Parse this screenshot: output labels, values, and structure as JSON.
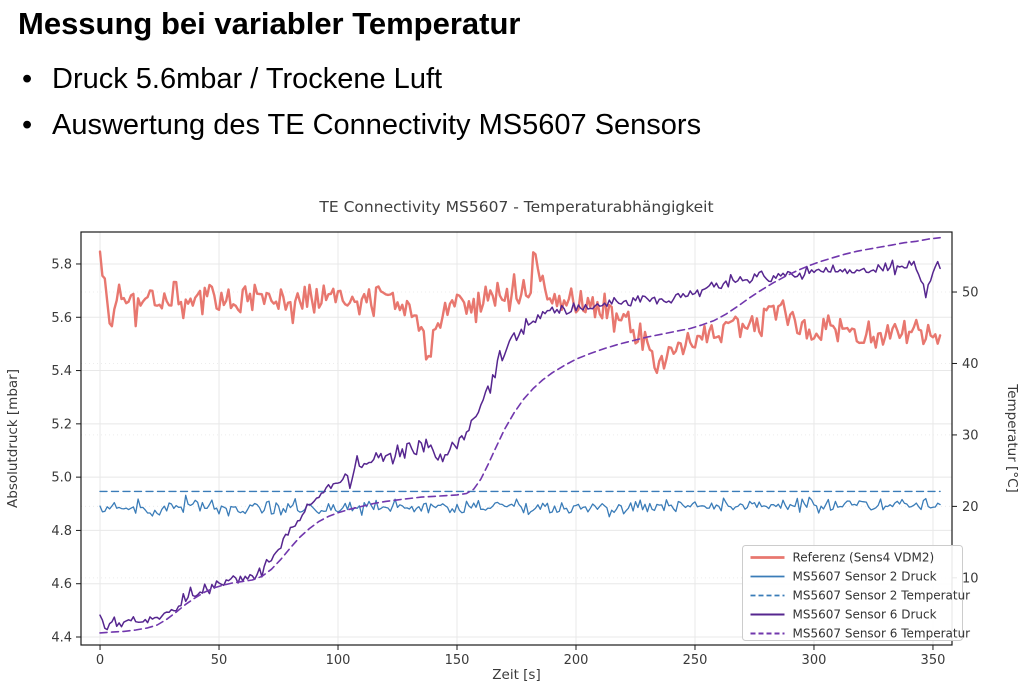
{
  "slide": {
    "title": "Messung bei variabler Temperatur",
    "bullet_glyph": "•",
    "bullets": [
      "Druck 5.6mbar / Trockene Luft",
      "Auswertung des TE Connectivity MS5607 Sensors"
    ]
  },
  "chart_data": {
    "type": "line",
    "title": "TE Connectivity MS5607 - Temperaturabhängigkeit",
    "xlabel": "Zeit [s]",
    "ylabel_left": "Absolutdruck [mbar]",
    "ylabel_right": "Temperatur [°C]",
    "xlim": [
      -8,
      358
    ],
    "ylim_left": [
      4.37,
      5.92
    ],
    "ylim_right": [
      0.6,
      58.4
    ],
    "xticks": [
      0,
      50,
      100,
      150,
      200,
      250,
      300,
      350
    ],
    "yticks_left": [
      4.4,
      4.6,
      4.8,
      5.0,
      5.2,
      5.4,
      5.6,
      5.8
    ],
    "yticks_right": [
      10,
      20,
      30,
      40,
      50
    ],
    "grid": true,
    "legend_position": "lower right",
    "colors": {
      "referenz": "#e8776f",
      "sensor2": "#3a7cb8",
      "sensor6_solid": "#56268f",
      "sensor6_dashed": "#7137ad"
    },
    "series": [
      {
        "name": "Referenz (Sens4 VDM2)",
        "axis": "left",
        "color": "#e8776f",
        "dash": false,
        "width": 2.4,
        "noise_std": 0.033,
        "points": [
          [
            0,
            5.8
          ],
          [
            2,
            5.7
          ],
          [
            4,
            5.56
          ],
          [
            8,
            5.66
          ],
          [
            14,
            5.65
          ],
          [
            20,
            5.68
          ],
          [
            26,
            5.65
          ],
          [
            32,
            5.67
          ],
          [
            38,
            5.66
          ],
          [
            44,
            5.68
          ],
          [
            50,
            5.68
          ],
          [
            56,
            5.65
          ],
          [
            62,
            5.67
          ],
          [
            68,
            5.7
          ],
          [
            74,
            5.66
          ],
          [
            80,
            5.65
          ],
          [
            86,
            5.68
          ],
          [
            92,
            5.66
          ],
          [
            98,
            5.7
          ],
          [
            104,
            5.67
          ],
          [
            110,
            5.64
          ],
          [
            116,
            5.68
          ],
          [
            122,
            5.67
          ],
          [
            128,
            5.64
          ],
          [
            132,
            5.6
          ],
          [
            136,
            5.51
          ],
          [
            139,
            5.46
          ],
          [
            142,
            5.57
          ],
          [
            146,
            5.63
          ],
          [
            152,
            5.66
          ],
          [
            158,
            5.66
          ],
          [
            164,
            5.67
          ],
          [
            170,
            5.66
          ],
          [
            176,
            5.69
          ],
          [
            181,
            5.75
          ],
          [
            183,
            5.83
          ],
          [
            185,
            5.74
          ],
          [
            188,
            5.68
          ],
          [
            192,
            5.66
          ],
          [
            197,
            5.65
          ],
          [
            203,
            5.63
          ],
          [
            209,
            5.62
          ],
          [
            215,
            5.61
          ],
          [
            221,
            5.58
          ],
          [
            227,
            5.52
          ],
          [
            233,
            5.46
          ],
          [
            238,
            5.43
          ],
          [
            242,
            5.49
          ],
          [
            247,
            5.52
          ],
          [
            252,
            5.54
          ],
          [
            258,
            5.55
          ],
          [
            264,
            5.56
          ],
          [
            270,
            5.55
          ],
          [
            276,
            5.58
          ],
          [
            281,
            5.62
          ],
          [
            286,
            5.64
          ],
          [
            290,
            5.6
          ],
          [
            296,
            5.56
          ],
          [
            302,
            5.55
          ],
          [
            308,
            5.58
          ],
          [
            314,
            5.57
          ],
          [
            320,
            5.55
          ],
          [
            326,
            5.54
          ],
          [
            332,
            5.55
          ],
          [
            338,
            5.56
          ],
          [
            344,
            5.54
          ],
          [
            349,
            5.52
          ],
          [
            353,
            5.5
          ]
        ]
      },
      {
        "name": "MS5607 Sensor 2 Druck",
        "axis": "left",
        "color": "#3a7cb8",
        "dash": false,
        "width": 1.3,
        "noise_std": 0.014,
        "points": [
          [
            0,
            4.88
          ],
          [
            60,
            4.885
          ],
          [
            120,
            4.89
          ],
          [
            180,
            4.885
          ],
          [
            240,
            4.89
          ],
          [
            300,
            4.895
          ],
          [
            353,
            4.9
          ]
        ]
      },
      {
        "name": "MS5607 Sensor 2 Temperatur",
        "axis": "right",
        "color": "#3a7cb8",
        "dash": true,
        "width": 1.4,
        "noise_std": 0,
        "points": [
          [
            0,
            22.1
          ],
          [
            353,
            22.1
          ]
        ]
      },
      {
        "name": "MS5607 Sensor 6 Druck",
        "axis": "left",
        "color": "#56268f",
        "dash": false,
        "width": 1.5,
        "noise_std": 0.012,
        "noise_boost": [
          96,
          168,
          1.8
        ],
        "points": [
          [
            0,
            4.47
          ],
          [
            3,
            4.44
          ],
          [
            6,
            4.46
          ],
          [
            10,
            4.45
          ],
          [
            14,
            4.46
          ],
          [
            18,
            4.46
          ],
          [
            22,
            4.47
          ],
          [
            26,
            4.48
          ],
          [
            30,
            4.5
          ],
          [
            34,
            4.52
          ],
          [
            38,
            4.55
          ],
          [
            42,
            4.57
          ],
          [
            46,
            4.59
          ],
          [
            50,
            4.6
          ],
          [
            54,
            4.61
          ],
          [
            58,
            4.61
          ],
          [
            62,
            4.62
          ],
          [
            66,
            4.64
          ],
          [
            70,
            4.67
          ],
          [
            74,
            4.72
          ],
          [
            78,
            4.78
          ],
          [
            82,
            4.83
          ],
          [
            86,
            4.87
          ],
          [
            90,
            4.91
          ],
          [
            94,
            4.94
          ],
          [
            98,
            4.97
          ],
          [
            103,
            5.0
          ],
          [
            108,
            5.03
          ],
          [
            114,
            5.06
          ],
          [
            120,
            5.08
          ],
          [
            126,
            5.1
          ],
          [
            131,
            5.11
          ],
          [
            136,
            5.12
          ],
          [
            140,
            5.1
          ],
          [
            144,
            5.07
          ],
          [
            148,
            5.1
          ],
          [
            152,
            5.14
          ],
          [
            156,
            5.2
          ],
          [
            160,
            5.28
          ],
          [
            164,
            5.36
          ],
          [
            168,
            5.44
          ],
          [
            172,
            5.5
          ],
          [
            176,
            5.55
          ],
          [
            180,
            5.58
          ],
          [
            184,
            5.61
          ],
          [
            188,
            5.62
          ],
          [
            193,
            5.62
          ],
          [
            198,
            5.63
          ],
          [
            204,
            5.64
          ],
          [
            210,
            5.64
          ],
          [
            216,
            5.65
          ],
          [
            222,
            5.66
          ],
          [
            228,
            5.67
          ],
          [
            234,
            5.66
          ],
          [
            240,
            5.67
          ],
          [
            246,
            5.68
          ],
          [
            252,
            5.7
          ],
          [
            258,
            5.72
          ],
          [
            264,
            5.73
          ],
          [
            270,
            5.74
          ],
          [
            276,
            5.75
          ],
          [
            282,
            5.75
          ],
          [
            288,
            5.76
          ],
          [
            294,
            5.76
          ],
          [
            300,
            5.77
          ],
          [
            306,
            5.77
          ],
          [
            312,
            5.77
          ],
          [
            318,
            5.78
          ],
          [
            324,
            5.78
          ],
          [
            330,
            5.79
          ],
          [
            336,
            5.79
          ],
          [
            341,
            5.81
          ],
          [
            344,
            5.77
          ],
          [
            347,
            5.68
          ],
          [
            350,
            5.77
          ],
          [
            353,
            5.81
          ]
        ]
      },
      {
        "name": "MS5607 Sensor 6 Temperatur",
        "axis": "right",
        "color": "#7137ad",
        "dash": true,
        "width": 1.6,
        "noise_std": 0,
        "points": [
          [
            0,
            2.3
          ],
          [
            5,
            2.4
          ],
          [
            10,
            2.5
          ],
          [
            15,
            2.7
          ],
          [
            20,
            3.0
          ],
          [
            24,
            3.4
          ],
          [
            28,
            4.2
          ],
          [
            32,
            5.2
          ],
          [
            36,
            6.3
          ],
          [
            40,
            7.2
          ],
          [
            44,
            8.0
          ],
          [
            48,
            8.6
          ],
          [
            52,
            9.0
          ],
          [
            56,
            9.3
          ],
          [
            60,
            9.5
          ],
          [
            64,
            9.7
          ],
          [
            68,
            10.2
          ],
          [
            72,
            11.2
          ],
          [
            76,
            12.6
          ],
          [
            80,
            14.2
          ],
          [
            84,
            15.7
          ],
          [
            88,
            16.9
          ],
          [
            92,
            17.9
          ],
          [
            96,
            18.6
          ],
          [
            100,
            19.1
          ],
          [
            105,
            19.6
          ],
          [
            110,
            20.0
          ],
          [
            115,
            20.4
          ],
          [
            120,
            20.7
          ],
          [
            125,
            20.9
          ],
          [
            130,
            21.1
          ],
          [
            135,
            21.3
          ],
          [
            140,
            21.4
          ],
          [
            145,
            21.5
          ],
          [
            150,
            21.6
          ],
          [
            154,
            21.8
          ],
          [
            157,
            22.4
          ],
          [
            160,
            23.8
          ],
          [
            163,
            25.8
          ],
          [
            166,
            28.0
          ],
          [
            170,
            30.8
          ],
          [
            174,
            33.1
          ],
          [
            178,
            35.0
          ],
          [
            182,
            36.5
          ],
          [
            186,
            37.7
          ],
          [
            190,
            38.7
          ],
          [
            195,
            39.7
          ],
          [
            200,
            40.6
          ],
          [
            206,
            41.4
          ],
          [
            212,
            42.1
          ],
          [
            218,
            42.7
          ],
          [
            224,
            43.2
          ],
          [
            230,
            43.7
          ],
          [
            236,
            44.1
          ],
          [
            242,
            44.5
          ],
          [
            248,
            44.9
          ],
          [
            253,
            45.4
          ],
          [
            258,
            46.0
          ],
          [
            263,
            46.9
          ],
          [
            268,
            48.0
          ],
          [
            273,
            49.2
          ],
          [
            278,
            50.3
          ],
          [
            283,
            51.3
          ],
          [
            288,
            52.2
          ],
          [
            293,
            53.0
          ],
          [
            298,
            53.7
          ],
          [
            303,
            54.3
          ],
          [
            308,
            54.8
          ],
          [
            313,
            55.3
          ],
          [
            318,
            55.7
          ],
          [
            323,
            56.0
          ],
          [
            328,
            56.3
          ],
          [
            333,
            56.6
          ],
          [
            338,
            56.9
          ],
          [
            343,
            57.1
          ],
          [
            348,
            57.4
          ],
          [
            353,
            57.6
          ]
        ]
      }
    ]
  }
}
